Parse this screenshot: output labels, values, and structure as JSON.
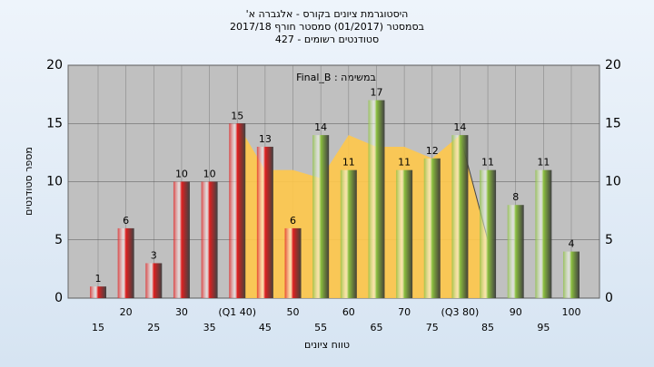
{
  "chart_data": {
    "type": "bar",
    "title": "היסטוגרמת ציונים בקורס - אלגברה א'",
    "subtitle": "בסמסטר (01/2017) סמסטר חורף 2017/18",
    "subtitle2": "סטודנטים רשומים - 427",
    "legend_label": "Final_B : במשימה",
    "ylabel": "מספר סטודנטים",
    "xlabel": "טווח ציונים",
    "categories": [
      "15",
      "20",
      "25",
      "30",
      "35",
      "(Q1 40)",
      "45",
      "50",
      "55",
      "60",
      "65",
      "70",
      "75",
      "(Q3 80)",
      "85",
      "90",
      "95",
      "100"
    ],
    "values": [
      1,
      6,
      3,
      10,
      10,
      15,
      13,
      6,
      14,
      11,
      17,
      11,
      12,
      14,
      11,
      8,
      11,
      4
    ],
    "colors": [
      "#e02020",
      "#e02020",
      "#e02020",
      "#e02020",
      "#e02020",
      "#e02020",
      "#e02020",
      "#e02020",
      "#8cc040",
      "#8cc040",
      "#8cc040",
      "#8cc040",
      "#8cc040",
      "#8cc040",
      "#8cc040",
      "#8cc040",
      "#8cc040",
      "#8cc040"
    ],
    "area": {
      "color": "#ffc84a",
      "values": [
        null,
        null,
        null,
        null,
        null,
        15,
        11,
        11,
        10.3,
        14,
        13,
        13,
        12,
        14,
        5,
        null,
        null,
        null
      ]
    },
    "ylim": [
      0,
      20
    ],
    "yticks": [
      0,
      5,
      10,
      15,
      20
    ],
    "grid": true
  }
}
